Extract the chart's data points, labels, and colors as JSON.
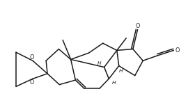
{
  "bg_color": "#ffffff",
  "line_color": "#1a1a1a",
  "line_width": 1.1,
  "figsize": [
    2.8,
    1.61
  ],
  "dpi": 100,
  "font_size": 5.8,
  "xlim": [
    -0.5,
    10.5
  ],
  "ylim": [
    -0.3,
    5.8
  ]
}
